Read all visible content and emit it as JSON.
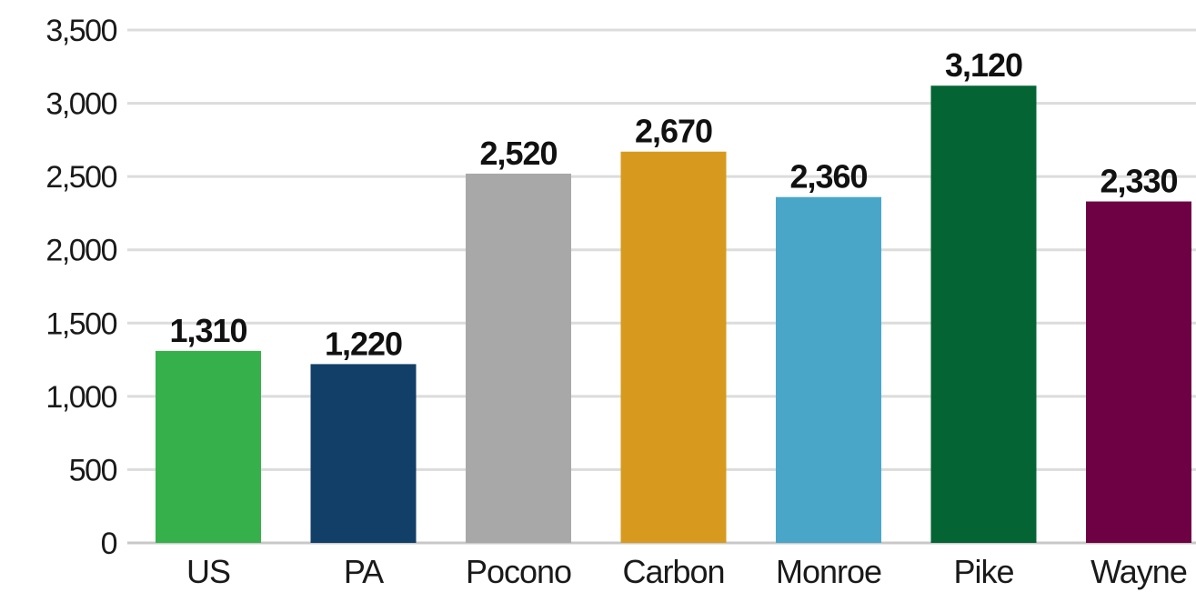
{
  "chart_data": {
    "type": "bar",
    "categories": [
      "US",
      "PA",
      "Pocono",
      "Carbon",
      "Monroe",
      "Pike",
      "Wayne"
    ],
    "values": [
      1310,
      1220,
      2520,
      2670,
      2360,
      3120,
      2330
    ],
    "value_labels": [
      "1,310",
      "1,220",
      "2,520",
      "2,670",
      "2,360",
      "3,120",
      "2,330"
    ],
    "colors": [
      "#36b04a",
      "#123f67",
      "#a8a8a8",
      "#d89a1e",
      "#4aa6c8",
      "#046434",
      "#6d0143"
    ],
    "ylim": [
      0,
      3500
    ],
    "yticks": [
      0,
      500,
      1000,
      1500,
      2000,
      2500,
      3000,
      3500
    ],
    "ytick_labels": [
      "0",
      "500",
      "1,000",
      "1,500",
      "2,000",
      "2,500",
      "3,000",
      "3,500"
    ],
    "grid": true,
    "title": "",
    "xlabel": "",
    "ylabel": ""
  }
}
